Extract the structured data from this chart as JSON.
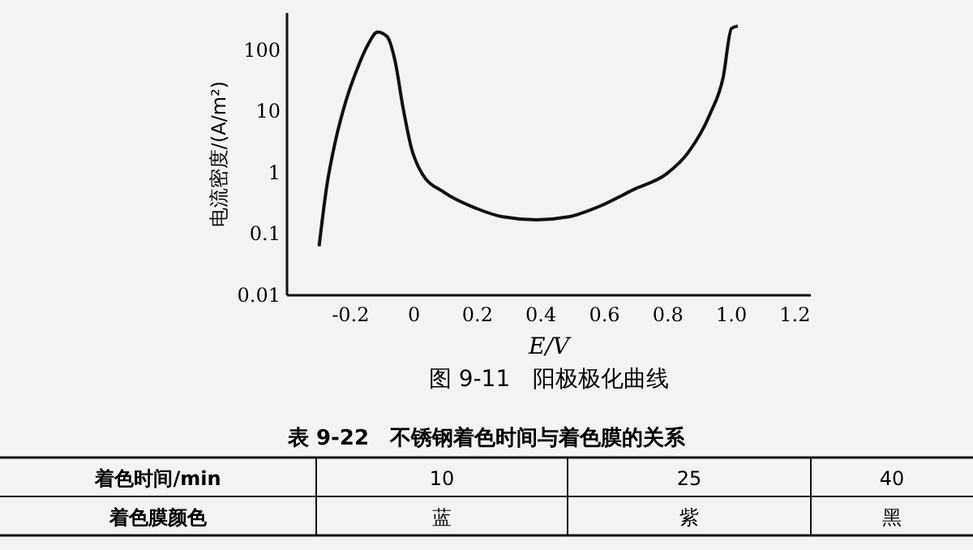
{
  "chart_data": {
    "type": "line",
    "title": "图 9-11　阳极极化曲线",
    "xlabel": "E/V",
    "ylabel": "电流密度/(A/m²)",
    "x": [
      -0.299,
      -0.274,
      -0.248,
      -0.214,
      -0.179,
      -0.145,
      -0.115,
      -0.085,
      -0.06,
      -0.034,
      -0.009,
      0.026,
      0.094,
      0.197,
      0.28,
      0.385,
      0.487,
      0.59,
      0.692,
      0.795,
      0.863,
      0.932,
      0.974,
      1.0,
      1.02
    ],
    "series": [
      {
        "color": "#111111",
        "values": [
          0.063,
          0.64,
          3.2,
          15,
          49,
          122,
          195,
          165,
          67,
          11,
          2.6,
          0.95,
          0.48,
          0.26,
          0.19,
          0.17,
          0.19,
          0.29,
          0.53,
          0.95,
          2.1,
          8.9,
          36,
          224,
          245
        ]
      }
    ],
    "log": "y",
    "xlim": [
      -0.4,
      1.25
    ],
    "ylim": [
      0.01,
      400
    ],
    "xticks": [
      -0.2,
      0,
      0.2,
      0.4,
      0.6,
      0.8,
      {
        "value": 1,
        "label": "1.0"
      },
      1.2
    ],
    "yticks": [
      0.01,
      0.1,
      1,
      10,
      100
    ],
    "grid": false,
    "line_style": "solid",
    "annotations": [
      "表 9-22　不锈钢着色时间与着色膜的关系",
      "着色时间/min",
      "10",
      "25",
      "40",
      "着色膜颜色",
      "蓝",
      "紫",
      "黑"
    ]
  }
}
